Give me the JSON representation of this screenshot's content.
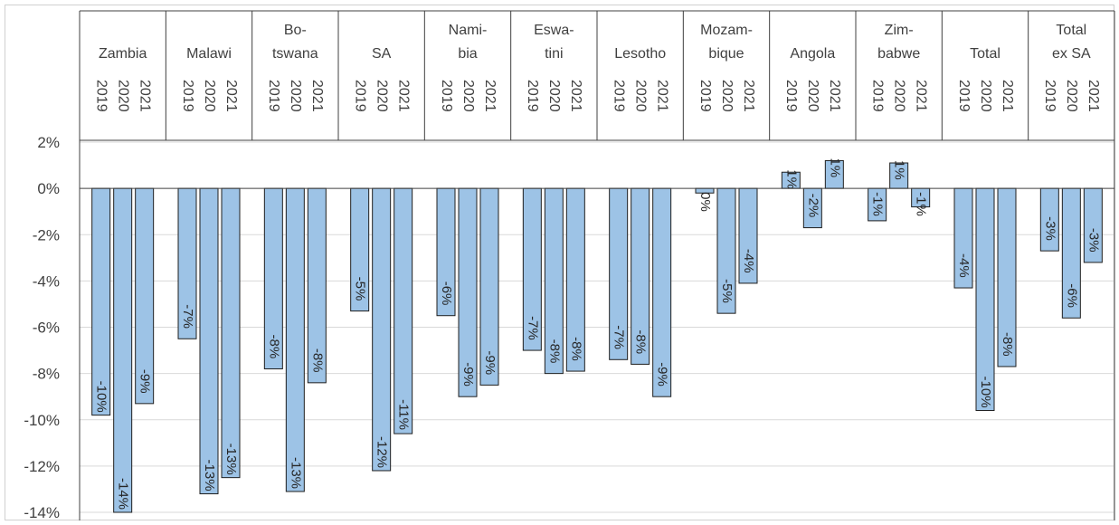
{
  "chart_data": {
    "type": "bar",
    "title": "",
    "xlabel": "",
    "ylabel": "",
    "ylim": [
      -14,
      2
    ],
    "yticks": [
      2,
      0,
      -2,
      -4,
      -6,
      -8,
      -10,
      -12,
      -14
    ],
    "ytick_labels": [
      "2%",
      "0%",
      "-2%",
      "-4%",
      "-6%",
      "-8%",
      "-10%",
      "-12%",
      "-14%"
    ],
    "bar_color": "#9dc3e6",
    "bar_edge_color": "#1f1f1f",
    "grid": true,
    "years": [
      "2019",
      "2020",
      "2021"
    ],
    "groups": [
      {
        "name_lines": [
          "",
          "Zambia"
        ],
        "values": [
          -9.8,
          -14.0,
          -9.3
        ],
        "labels": [
          "-10%",
          "-14%",
          "-9%"
        ]
      },
      {
        "name_lines": [
          "",
          "Malawi"
        ],
        "values": [
          -6.5,
          -13.2,
          -12.5
        ],
        "labels": [
          "-7%",
          "-13%",
          "-13%"
        ]
      },
      {
        "name_lines": [
          "Bo-",
          "tswana"
        ],
        "values": [
          -7.8,
          -13.1,
          -8.4
        ],
        "labels": [
          "-8%",
          "-13%",
          "-8%"
        ]
      },
      {
        "name_lines": [
          "",
          "SA"
        ],
        "values": [
          -5.3,
          -12.2,
          -10.6
        ],
        "labels": [
          "-5%",
          "-12%",
          "-11%"
        ]
      },
      {
        "name_lines": [
          "Nami-",
          "bia"
        ],
        "values": [
          -5.5,
          -9.0,
          -8.5
        ],
        "labels": [
          "-6%",
          "-9%",
          "-9%"
        ]
      },
      {
        "name_lines": [
          "Eswa-",
          "tini"
        ],
        "values": [
          -7.0,
          -8.0,
          -7.9
        ],
        "labels": [
          "-7%",
          "-8%",
          "-8%"
        ]
      },
      {
        "name_lines": [
          "",
          "Lesotho"
        ],
        "values": [
          -7.4,
          -7.6,
          -9.0
        ],
        "labels": [
          "-7%",
          "-8%",
          "-9%"
        ]
      },
      {
        "name_lines": [
          "Mozam-",
          "bique"
        ],
        "values": [
          -0.2,
          -5.4,
          -4.1
        ],
        "labels": [
          "0%",
          "-5%",
          "-4%"
        ]
      },
      {
        "name_lines": [
          "",
          "Angola"
        ],
        "values": [
          0.7,
          -1.7,
          1.2
        ],
        "labels": [
          "1%",
          "-2%",
          "1%"
        ]
      },
      {
        "name_lines": [
          "Zim-",
          "babwe"
        ],
        "values": [
          -1.4,
          1.1,
          -0.8
        ],
        "labels": [
          "-1%",
          "1%",
          "-1%"
        ]
      },
      {
        "name_lines": [
          "",
          "Total"
        ],
        "values": [
          -4.3,
          -9.6,
          -7.7
        ],
        "labels": [
          "-4%",
          "-10%",
          "-8%"
        ]
      },
      {
        "name_lines": [
          "Total",
          "ex SA"
        ],
        "values": [
          -2.7,
          -5.6,
          -3.2
        ],
        "labels": [
          "-3%",
          "-6%",
          "-3%"
        ]
      }
    ]
  }
}
